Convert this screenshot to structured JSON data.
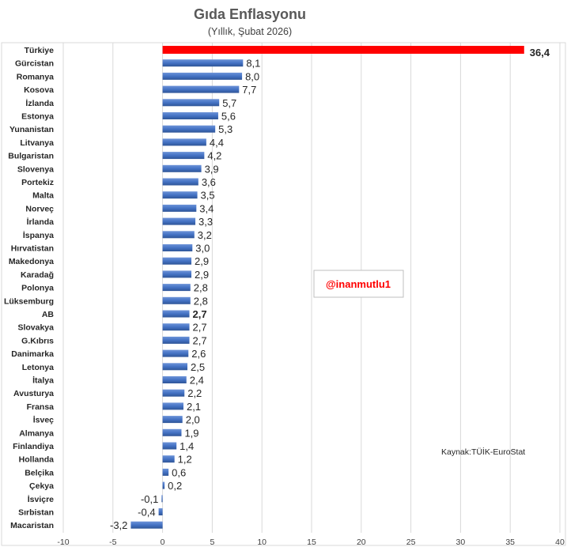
{
  "chart_data": {
    "type": "bar",
    "orientation": "horizontal",
    "title": "Gıda Enflasyonu",
    "subtitle": "(Yıllık, Şubat 2026)",
    "xlim": [
      -10,
      40
    ],
    "xticks": [
      -10,
      -5,
      0,
      5,
      10,
      15,
      20,
      25,
      30,
      35,
      40
    ],
    "grid": true,
    "categories": [
      "Türkiye",
      "Gürcistan",
      "Romanya",
      "Kosova",
      "İzlanda",
      "Estonya",
      "Yunanistan",
      "Litvanya",
      "Bulgaristan",
      "Slovenya",
      "Portekiz",
      "Malta",
      "Norveç",
      "İrlanda",
      "İspanya",
      "Hırvatistan",
      "Makedonya",
      "Karadağ",
      "Polonya",
      "Lüksemburg",
      "AB",
      "Slovakya",
      "G.Kıbrıs",
      "Danimarka",
      "Letonya",
      "İtalya",
      "Avusturya",
      "Fransa",
      "İsveç",
      "Almanya",
      "Finlandiya",
      "Hollanda",
      "Belçika",
      "Çekya",
      "İsviçre",
      "Sırbistan",
      "Macaristan"
    ],
    "values": [
      36.4,
      8.1,
      8.0,
      7.7,
      5.7,
      5.6,
      5.3,
      4.4,
      4.2,
      3.9,
      3.6,
      3.5,
      3.4,
      3.3,
      3.2,
      3.0,
      2.9,
      2.9,
      2.8,
      2.8,
      2.7,
      2.7,
      2.7,
      2.6,
      2.5,
      2.4,
      2.2,
      2.1,
      2.0,
      1.9,
      1.4,
      1.2,
      0.6,
      0.2,
      -0.1,
      -0.4,
      -3.2
    ],
    "value_labels": [
      "36,4",
      "8,1",
      "8,0",
      "7,7",
      "5,7",
      "5,6",
      "5,3",
      "4,4",
      "4,2",
      "3,9",
      "3,6",
      "3,5",
      "3,4",
      "3,3",
      "3,2",
      "3,0",
      "2,9",
      "2,9",
      "2,8",
      "2,8",
      "2,7",
      "2,7",
      "2,7",
      "2,6",
      "2,5",
      "2,4",
      "2,2",
      "2,1",
      "2,0",
      "1,9",
      "1,4",
      "1,2",
      "0,6",
      "0,2",
      "-0,1",
      "-0,4",
      "-3,2"
    ],
    "highlight": {
      "Türkiye": "#ff0000",
      "AB": "#4472c4"
    },
    "bar_color": "#4472c4"
  },
  "annotations": {
    "watermark": "@inanmutlu1",
    "source": "Kaynak:TÜİK-EuroStat"
  },
  "colors": {
    "bar": "#4472c4",
    "highlight": "#ff0000",
    "grid": "#d9d9d9"
  }
}
